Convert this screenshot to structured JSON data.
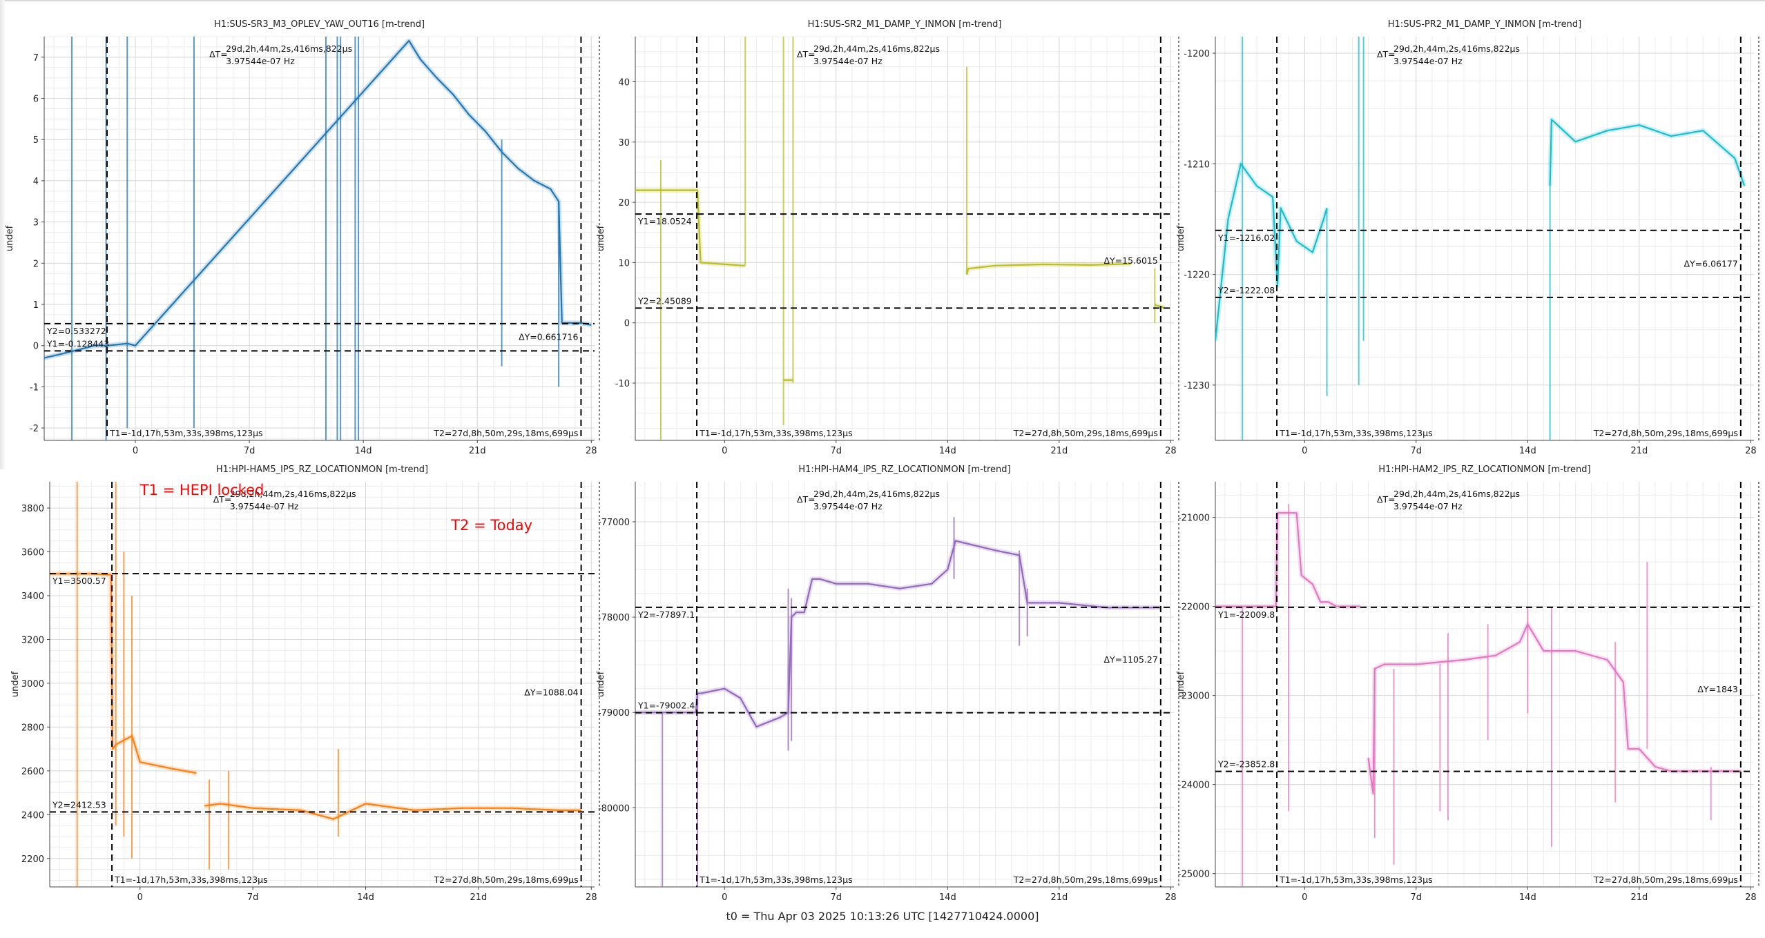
{
  "footer": "t0 = Thu Apr 03 2025 10:13:26 UTC [1427710424.0000]",
  "colors": {
    "blue": "#1f77b4",
    "olive": "#bcbd22",
    "cyan": "#17becf",
    "orange": "#ff7f0e",
    "purple": "#9467bd",
    "pink": "#e377c2",
    "annotation_red": "#ff0000",
    "cursor": "#000000"
  },
  "chart_data": [
    {
      "type": "line",
      "title": "H1:SUS-SR3_M3_OPLEV_YAW_OUT16 [m-trend]",
      "xlabel": "",
      "ylabel": "undef",
      "color": "blue",
      "xlim": [
        -5.6,
        28.2
      ],
      "ylim": [
        -2.3,
        7.5
      ],
      "xticks": [
        0,
        7,
        14,
        21,
        28
      ],
      "xticklabels": [
        "0",
        "7d",
        "14d",
        "21d",
        "28"
      ],
      "yticks": [
        -2,
        -1,
        0,
        1,
        2,
        3,
        4,
        5,
        6,
        7
      ],
      "grid": true,
      "cursors": {
        "T1": -1.74,
        "T2": 27.37,
        "Y1": -0.128443,
        "Y2": 0.533272,
        "t1_label": "T1=-1d,17h,53m,33s,398ms,123µs",
        "t2_label": "T2=27d,8h,50m,29s,18ms,699µs",
        "y1_label": "Y1=-0.128443",
        "y2_label": "Y2=0.533272",
        "dy_label": "ΔY=0.661716",
        "dt_prefix": "ΔT=",
        "dt_label": "29d,2h,44m,2s,416ms,822µs",
        "freq_label": "3.97544e-07 Hz"
      },
      "series": [
        {
          "x": [
            -5.6,
            -4.5,
            -3.5,
            -2.5,
            -1.8,
            -1.7,
            -0.5,
            0.0,
            16.8,
            17.5,
            18.5,
            19.5,
            20.5,
            21.5,
            22.5,
            23.5,
            24.5,
            25.5,
            26.0,
            26.2,
            27.4,
            28.0
          ],
          "y": [
            -0.3,
            -0.2,
            -0.1,
            0.0,
            0.0,
            0.0,
            0.05,
            0.0,
            7.4,
            6.95,
            6.5,
            6.1,
            5.6,
            5.2,
            4.7,
            4.3,
            4.0,
            3.8,
            3.5,
            0.55,
            0.55,
            0.5
          ]
        }
      ],
      "spikes": [
        {
          "x": -3.9,
          "from": -2.3,
          "to": 7.5
        },
        {
          "x": -1.8,
          "from": -2.3,
          "to": 7.5
        },
        {
          "x": -0.5,
          "from": -2.0,
          "to": 7.5
        },
        {
          "x": 3.6,
          "from": -2.0,
          "to": 7.5
        },
        {
          "x": 11.7,
          "from": -2.3,
          "to": 7.5
        },
        {
          "x": 12.4,
          "from": -2.3,
          "to": 7.5
        },
        {
          "x": 12.6,
          "from": -2.3,
          "to": 7.5
        },
        {
          "x": 13.5,
          "from": -2.3,
          "to": 7.5
        },
        {
          "x": 13.7,
          "from": -2.3,
          "to": 7.5
        },
        {
          "x": 22.5,
          "from": -0.5,
          "to": 5.0
        },
        {
          "x": 26.0,
          "from": -1.0,
          "to": 3.5
        }
      ],
      "annotations": []
    },
    {
      "type": "line",
      "title": "H1:SUS-SR2_M1_DAMP_Y_INMON [m-trend]",
      "xlabel": "",
      "ylabel": "undef",
      "color": "olive",
      "xlim": [
        -5.6,
        28.2
      ],
      "ylim": [
        -19.5,
        47.5
      ],
      "xticks": [
        0,
        7,
        14,
        21,
        28
      ],
      "xticklabels": [
        "0",
        "7d",
        "14d",
        "21d",
        "28"
      ],
      "yticks": [
        -10,
        0,
        10,
        20,
        30,
        40
      ],
      "grid": true,
      "cursors": {
        "T1": -1.74,
        "T2": 27.37,
        "Y1": 18.0524,
        "Y2": 2.45089,
        "t1_label": "T1=-1d,17h,53m,33s,398ms,123µs",
        "t2_label": "T2=27d,8h,50m,29s,18ms,699µs",
        "y1_label": "Y1=18.0524",
        "y2_label": "Y2=2.45089",
        "dy_label": "ΔY=15.6015",
        "dt_prefix": "ΔT=",
        "dt_label": "29d,2h,44m,2s,416ms,822µs",
        "freq_label": "3.97544e-07 Hz"
      },
      "series": [
        {
          "x": [
            -5.6,
            -4.0,
            -2.0,
            -1.7,
            -1.5,
            1.2,
            1.3
          ],
          "y": [
            22.0,
            22.0,
            22.0,
            22.0,
            10.0,
            9.5,
            9.5
          ]
        },
        {
          "x": [
            3.7,
            4.3
          ],
          "y": [
            -9.5,
            -9.5
          ]
        },
        {
          "x": [
            15.2,
            15.3,
            17.0,
            20.0,
            23.0,
            25.5
          ],
          "y": [
            8.0,
            9.0,
            9.5,
            9.7,
            9.6,
            9.8
          ]
        },
        {
          "x": [
            27.0,
            27.6
          ],
          "y": [
            3.0,
            2.5
          ]
        }
      ],
      "spikes": [
        {
          "x": -4.0,
          "from": -19.5,
          "to": 27.0
        },
        {
          "x": 1.3,
          "from": 9.5,
          "to": 47.5
        },
        {
          "x": 3.7,
          "from": -17.0,
          "to": 47.5
        },
        {
          "x": 4.3,
          "from": -10.0,
          "to": 47.5
        },
        {
          "x": 15.2,
          "from": 8.0,
          "to": 42.5
        },
        {
          "x": 27.0,
          "from": 0.0,
          "to": 9.0
        }
      ],
      "annotations": []
    },
    {
      "type": "line",
      "title": "H1:SUS-PR2_M1_DAMP_Y_INMON [m-trend]",
      "xlabel": "",
      "ylabel": "undef",
      "color": "cyan",
      "xlim": [
        -5.6,
        28.2
      ],
      "ylim": [
        -1235,
        -1198.5
      ],
      "xticks": [
        0,
        7,
        14,
        21,
        28
      ],
      "xticklabels": [
        "0",
        "7d",
        "14d",
        "21d",
        "28"
      ],
      "yticks": [
        -1230,
        -1220,
        -1210,
        -1200
      ],
      "grid": true,
      "cursors": {
        "T1": -1.74,
        "T2": 27.37,
        "Y1": -1216.02,
        "Y2": -1222.08,
        "t1_label": "T1=-1d,17h,53m,33s,398ms,123µs",
        "t2_label": "T2=27d,8h,50m,29s,18ms,699µs",
        "y1_label": "Y1=-1216.02",
        "y2_label": "Y2=-1222.08",
        "dy_label": "ΔY=6.06177",
        "dt_prefix": "ΔT=",
        "dt_label": "29d,2h,44m,2s,416ms,822µs",
        "freq_label": "3.97544e-07 Hz"
      },
      "series": [
        {
          "x": [
            -5.6,
            -4.8,
            -4.0,
            -3.0,
            -2.0,
            -1.7,
            -1.5,
            -0.5,
            0.5,
            1.2,
            1.4
          ],
          "y": [
            -1226.0,
            -1215.0,
            -1210.0,
            -1212.0,
            -1213.0,
            -1221.0,
            -1214.0,
            -1217.0,
            -1218.0,
            -1215.0,
            -1214.0
          ]
        },
        {
          "x": [
            15.4,
            15.5,
            17.0,
            19.0,
            21.0,
            23.0,
            25.0,
            27.0,
            27.6
          ],
          "y": [
            -1212.0,
            -1206.0,
            -1208.0,
            -1207.0,
            -1206.5,
            -1207.5,
            -1207.0,
            -1209.5,
            -1212.0
          ]
        }
      ],
      "spikes": [
        {
          "x": -3.9,
          "from": -1235.0,
          "to": -1198.5
        },
        {
          "x": 1.4,
          "from": -1231.0,
          "to": -1214.0
        },
        {
          "x": 3.4,
          "from": -1230.0,
          "to": -1198.5
        },
        {
          "x": 3.7,
          "from": -1226.0,
          "to": -1198.5
        },
        {
          "x": 15.4,
          "from": -1235.0,
          "to": -1212.0
        }
      ],
      "annotations": []
    },
    {
      "type": "line",
      "title": "H1:HPI-HAM5_IPS_RZ_LOCATIONMON [m-trend]",
      "xlabel": "",
      "ylabel": "undef",
      "color": "orange",
      "xlim": [
        -5.6,
        28.2
      ],
      "ylim": [
        2070,
        3920
      ],
      "xticks": [
        0,
        7,
        14,
        21,
        28
      ],
      "xticklabels": [
        "0",
        "7d",
        "14d",
        "21d",
        "28"
      ],
      "yticks": [
        2200,
        2400,
        2600,
        2800,
        3000,
        3200,
        3400,
        3600,
        3800
      ],
      "grid": true,
      "cursors": {
        "T1": -1.74,
        "T2": 27.37,
        "Y1": 3500.57,
        "Y2": 2412.53,
        "t1_label": "T1=-1d,17h,53m,33s,398ms,123µs",
        "t2_label": "T2=27d,8h,50m,29s,18ms,699µs",
        "y1_label": "Y1=3500.57",
        "y2_label": "Y2=2412.53",
        "dy_label": "ΔY=1088.04",
        "dt_prefix": "ΔT=",
        "dt_label": "29d,2h,44m,2s,416ms,822µs",
        "freq_label": "3.97544e-07 Hz"
      },
      "series": [
        {
          "x": [
            -5.6,
            -3.0,
            -1.8,
            -1.7,
            -1.5,
            -0.5,
            0.0,
            2.0,
            3.5
          ],
          "y": [
            3500.0,
            3500.0,
            3495.0,
            2700.0,
            2720.0,
            2760.0,
            2640.0,
            2610.0,
            2590.0
          ]
        },
        {
          "x": [
            4.0,
            5.0,
            7.0,
            10.0,
            12.0,
            14.0,
            17.0,
            20.0,
            23.0,
            26.0,
            27.4
          ],
          "y": [
            2440.0,
            2450.0,
            2430.0,
            2420.0,
            2380.0,
            2450.0,
            2420.0,
            2430.0,
            2430.0,
            2420.0,
            2420.0
          ]
        }
      ],
      "spikes": [
        {
          "x": -3.9,
          "from": 2070.0,
          "to": 3920.0
        },
        {
          "x": -1.5,
          "from": 2350.0,
          "to": 3920.0
        },
        {
          "x": -1.0,
          "from": 2300.0,
          "to": 3600.0
        },
        {
          "x": -0.5,
          "from": 2200.0,
          "to": 3400.0
        },
        {
          "x": 4.3,
          "from": 2150.0,
          "to": 2560.0
        },
        {
          "x": 5.5,
          "from": 2150.0,
          "to": 2600.0
        },
        {
          "x": 12.3,
          "from": 2300.0,
          "to": 2700.0
        }
      ],
      "annotations": [
        {
          "text": "T1 = HEPI locked",
          "x": 0.0,
          "y": 3860.0
        },
        {
          "text": "T2 = Today",
          "x": 19.3,
          "y": 3700.0
        }
      ]
    },
    {
      "type": "line",
      "title": "H1:HPI-HAM4_IPS_RZ_LOCATIONMON [m-trend]",
      "xlabel": "",
      "ylabel": "undef",
      "color": "purple",
      "xlim": [
        -5.6,
        28.2
      ],
      "ylim": [
        -80830,
        -76580
      ],
      "xticks": [
        0,
        7,
        14,
        21,
        28
      ],
      "xticklabels": [
        "0",
        "7d",
        "14d",
        "21d",
        "28"
      ],
      "yticks": [
        -80000,
        -79000,
        -78000,
        -77000
      ],
      "grid": true,
      "cursors": {
        "T1": -1.74,
        "T2": 27.37,
        "Y1": -79002.4,
        "Y2": -77897.1,
        "t1_label": "T1=-1d,17h,53m,33s,398ms,123µs",
        "t2_label": "T2=27d,8h,50m,29s,18ms,699µs",
        "y1_label": "Y1=-79002.4",
        "y2_label": "Y2=-77897.1",
        "dy_label": "ΔY=1105.27",
        "dt_prefix": "ΔT=",
        "dt_label": "29d,2h,44m,2s,416ms,822µs",
        "freq_label": "3.97544e-07 Hz"
      },
      "series": [
        {
          "x": [
            -5.6,
            -3.0,
            -1.8,
            -1.7,
            -1.5,
            0.0,
            1.0,
            1.5,
            2.0,
            3.5,
            4.0,
            4.2,
            4.5,
            5.0,
            5.5,
            6.0,
            7.0,
            9.0,
            11.0,
            13.0,
            14.0,
            14.5,
            17.0,
            18.5,
            19.0,
            21.0,
            24.0,
            27.4
          ],
          "y": [
            -79000.0,
            -79000.0,
            -79000.0,
            -78800.0,
            -78800.0,
            -78750.0,
            -78850.0,
            -79000.0,
            -79150.0,
            -79050.0,
            -79000.0,
            -78000.0,
            -77950.0,
            -77950.0,
            -77600.0,
            -77600.0,
            -77650.0,
            -77650.0,
            -77700.0,
            -77650.0,
            -77500.0,
            -77200.0,
            -77300.0,
            -77350.0,
            -77850.0,
            -77850.0,
            -77900.0,
            -77900.0
          ]
        }
      ],
      "spikes": [
        {
          "x": -3.9,
          "from": -80830.0,
          "to": -79000.0
        },
        {
          "x": -1.7,
          "from": -80830.0,
          "to": -78800.0
        },
        {
          "x": 4.0,
          "from": -79400.0,
          "to": -77700.0
        },
        {
          "x": 4.2,
          "from": -79300.0,
          "to": -77800.0
        },
        {
          "x": 14.4,
          "from": -77600.0,
          "to": -76950.0
        },
        {
          "x": 18.5,
          "from": -78300.0,
          "to": -77300.0
        },
        {
          "x": 19.0,
          "from": -78200.0,
          "to": -77700.0
        }
      ],
      "annotations": []
    },
    {
      "type": "line",
      "title": "H1:HPI-HAM2_IPS_RZ_LOCATIONMON [m-trend]",
      "xlabel": "",
      "ylabel": "undef",
      "color": "pink",
      "xlim": [
        -5.6,
        28.2
      ],
      "ylim": [
        -25150,
        -20600
      ],
      "xticks": [
        0,
        7,
        14,
        21,
        28
      ],
      "xticklabels": [
        "0",
        "7d",
        "14d",
        "21d",
        "28"
      ],
      "yticks": [
        -25000,
        -24000,
        -23000,
        -22000,
        -21000
      ],
      "grid": true,
      "cursors": {
        "T1": -1.74,
        "T2": 27.37,
        "Y1": -22009.8,
        "Y2": -23852.8,
        "t1_label": "T1=-1d,17h,53m,33s,398ms,123µs",
        "t2_label": "T2=27d,8h,50m,29s,18ms,699µs",
        "y1_label": "Y1=-22009.8",
        "y2_label": "Y2=-23852.8",
        "dy_label": "ΔY=1843",
        "dt_prefix": "ΔT=",
        "dt_label": "29d,2h,44m,2s,416ms,822µs",
        "freq_label": "3.97544e-07 Hz"
      },
      "series": [
        {
          "x": [
            -5.6,
            -3.0,
            -1.8,
            -1.7,
            -1.5,
            -0.5,
            -0.2,
            0.5,
            1.0,
            1.5,
            2.0,
            3.0,
            3.5
          ],
          "y": [
            -22000.0,
            -22000.0,
            -22000.0,
            -20950.0,
            -20950.0,
            -20950.0,
            -21650.0,
            -21750.0,
            -21950.0,
            -21950.0,
            -22000.0,
            -22000.0,
            -22000.0
          ]
        },
        {
          "x": [
            4.0,
            4.3,
            4.4,
            5.0,
            7.0,
            10.0,
            12.0,
            13.5,
            14.0,
            15.0,
            17.0,
            19.0,
            20.0,
            20.3,
            21.0,
            22.0,
            23.0,
            24.0,
            27.4
          ],
          "y": [
            -23700.0,
            -24100.0,
            -22700.0,
            -22650.0,
            -22650.0,
            -22600.0,
            -22550.0,
            -22400.0,
            -22200.0,
            -22500.0,
            -22500.0,
            -22600.0,
            -22850.0,
            -23600.0,
            -23600.0,
            -23800.0,
            -23850.0,
            -23850.0,
            -23850.0
          ]
        }
      ],
      "spikes": [
        {
          "x": -3.9,
          "from": -25150.0,
          "to": -22000.0
        },
        {
          "x": -1.0,
          "from": -24300.0,
          "to": -20850.0
        },
        {
          "x": 4.4,
          "from": -24600.0,
          "to": -22700.0
        },
        {
          "x": 5.6,
          "from": -24900.0,
          "to": -22700.0
        },
        {
          "x": 8.5,
          "from": -24300.0,
          "to": -22650.0
        },
        {
          "x": 9.0,
          "from": -24400.0,
          "to": -22300.0
        },
        {
          "x": 11.5,
          "from": -23500.0,
          "to": -22200.0
        },
        {
          "x": 14.0,
          "from": -23200.0,
          "to": -22000.0
        },
        {
          "x": 15.5,
          "from": -24700.0,
          "to": -22000.0
        },
        {
          "x": 19.5,
          "from": -24200.0,
          "to": -22400.0
        },
        {
          "x": 21.5,
          "from": -23600.0,
          "to": -21500.0
        },
        {
          "x": 25.5,
          "from": -24400.0,
          "to": -23800.0
        }
      ],
      "annotations": []
    }
  ]
}
